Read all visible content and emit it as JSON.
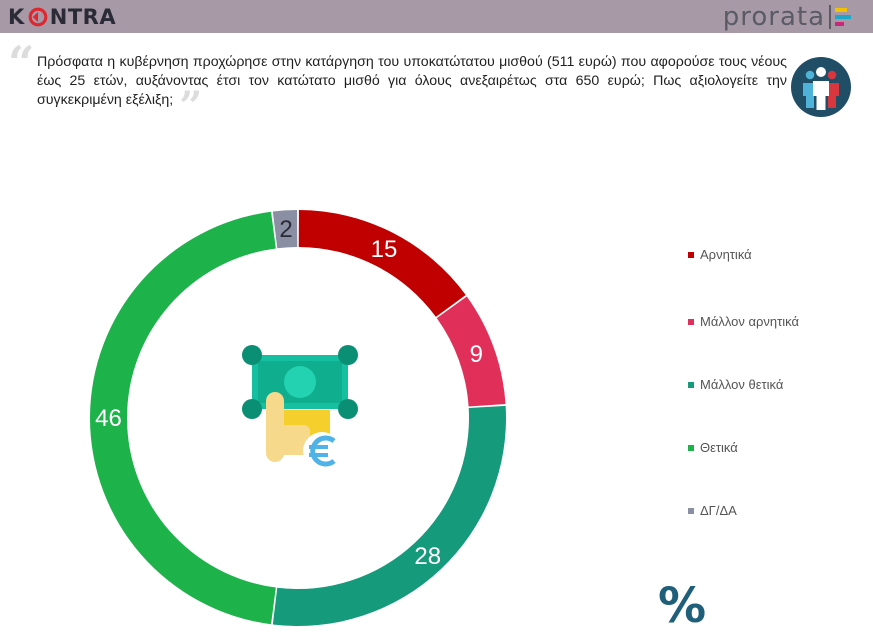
{
  "header": {
    "brand_left": "KONTRA",
    "brand_right": "prorata"
  },
  "question": {
    "text": "Πρόσφατα η κυβέρνηση προχώρησε στην κατάργηση του υποκατώτατου μισθού (511 ευρώ) που αφορούσε τους νέους έως 25 ετών, αυξάνοντας έτσι τον κατώτατο μισθό για όλους ανεξαιρέτως στα 650 ευρώ; Πως αξιολογείτε την συγκεκριμένη εξέλιξη;"
  },
  "chart_data": {
    "type": "pie",
    "variant": "donut",
    "unit": "%",
    "start_angle_deg": 0,
    "direction": "clockwise",
    "categories": [
      "Αρνητικά",
      "Μάλλον αρνητικά",
      "Μάλλον θετικά",
      "Θετικά",
      "ΔΓ/ΔΑ"
    ],
    "values": [
      15,
      9,
      28,
      46,
      2
    ],
    "colors": [
      "#c00000",
      "#e0305a",
      "#169a7c",
      "#1db34a",
      "#8a8fa3"
    ],
    "legend_position": "right",
    "unit_label": "%"
  },
  "colors": {
    "header_bg": "#a79aa6",
    "kontra_red": "#e0262e",
    "percent_color": "#1f5f7a"
  },
  "icons": {
    "people_badge": "people-icon",
    "center": "money-hand-euro-icon",
    "quote_open": "quote-open-icon",
    "quote_close": "quote-close-icon"
  }
}
